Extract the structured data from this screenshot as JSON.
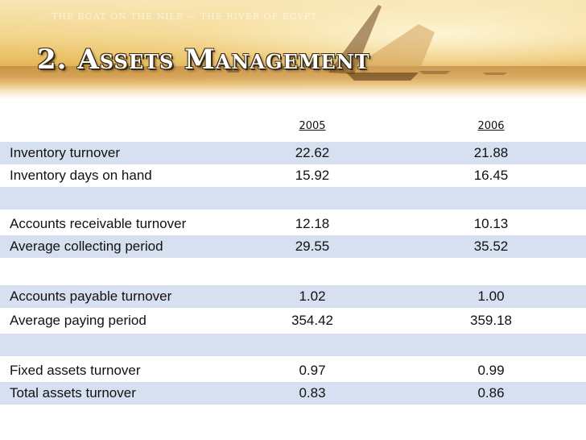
{
  "slide": {
    "banner_caption": "THE BOAT ON THE NILE — THE RIVER OF EGYPT",
    "title": "2. Assets Management"
  },
  "table": {
    "columns": [
      "2005",
      "2006"
    ],
    "rows": [
      {
        "label": "Inventory turnover",
        "v2005": "22.62",
        "v2006": "21.88",
        "shaded": true
      },
      {
        "label": "Inventory days on hand",
        "v2005": "15.92",
        "v2006": "16.45",
        "shaded": false
      },
      {
        "label": "",
        "v2005": "",
        "v2006": "",
        "shaded": true
      },
      {
        "label": "Accounts receivable turnover",
        "v2005": "12.18",
        "v2006": "10.13",
        "shaded": false
      },
      {
        "label": "Average collecting period",
        "v2005": "29.55",
        "v2006": "35.52",
        "shaded": true
      },
      {
        "label": "",
        "v2005": "",
        "v2006": "",
        "shaded": false
      },
      {
        "label": "Accounts payable turnover",
        "v2005": "1.02",
        "v2006": "1.00",
        "shaded": true
      },
      {
        "label": "Average paying period",
        "v2005": "354.42",
        "v2006": "359.18",
        "shaded": false
      },
      {
        "label": "",
        "v2005": "",
        "v2006": "",
        "shaded": true
      },
      {
        "label": "Fixed assets turnover",
        "v2005": "0.97",
        "v2006": "0.99",
        "shaded": false
      },
      {
        "label": "Total assets turnover",
        "v2005": "0.83",
        "v2006": "0.86",
        "shaded": true
      }
    ]
  }
}
